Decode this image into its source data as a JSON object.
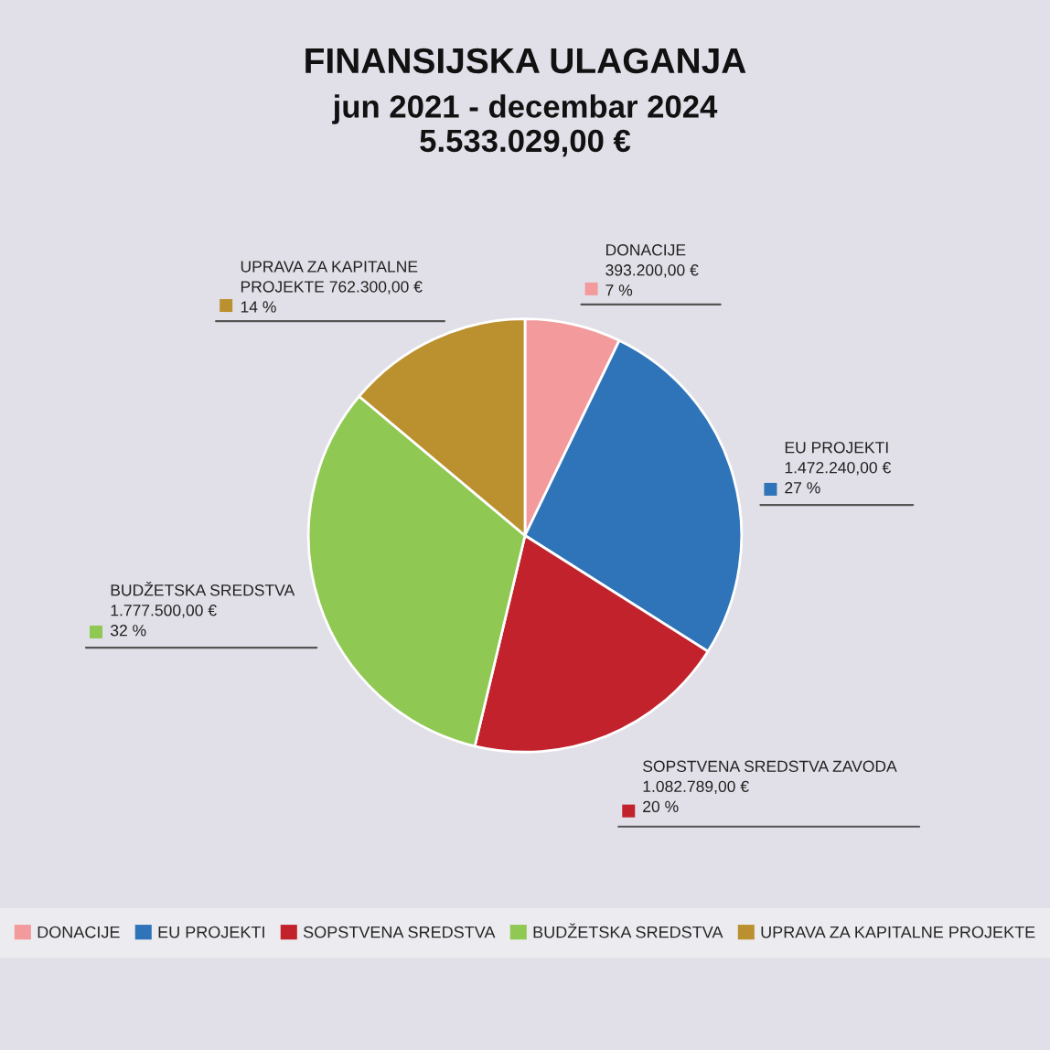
{
  "chart_data": {
    "type": "pie",
    "title": "FINANSIJSKA ULAGANJA",
    "subtitle": "jun 2021 - decembar 2024\n5.533.029,00 €",
    "categories": [
      "DONACIJE",
      "EU PROJEKTI",
      "SOPSTVENA SREDSTVA",
      "BUDŽETSKA SREDSTVA",
      "UPRAVA ZA KAPITALNE PROJEKTE"
    ],
    "values": [
      393200,
      1472240,
      1082789,
      1777500,
      762300
    ],
    "colors": [
      "#f29a9c",
      "#2f74b8",
      "#c1222b",
      "#8fc852",
      "#bb902e"
    ],
    "value_labels": [
      "DONACIJE\n393.200,00 €\n7 %",
      "EU PROJEKTI\n1.472.240,00 €\n27 %",
      "SOPSTVENA SREDSTVA ZAVODA\n1.082.789,00 €\n20 %",
      "BUDŽETSKA SREDSTVA\n1.777.500,00 €\n32 %",
      "UPRAVA ZA KAPITALNE\nPROJEKTE 762.300,00 €\n14 %"
    ],
    "legend": "bottom"
  }
}
